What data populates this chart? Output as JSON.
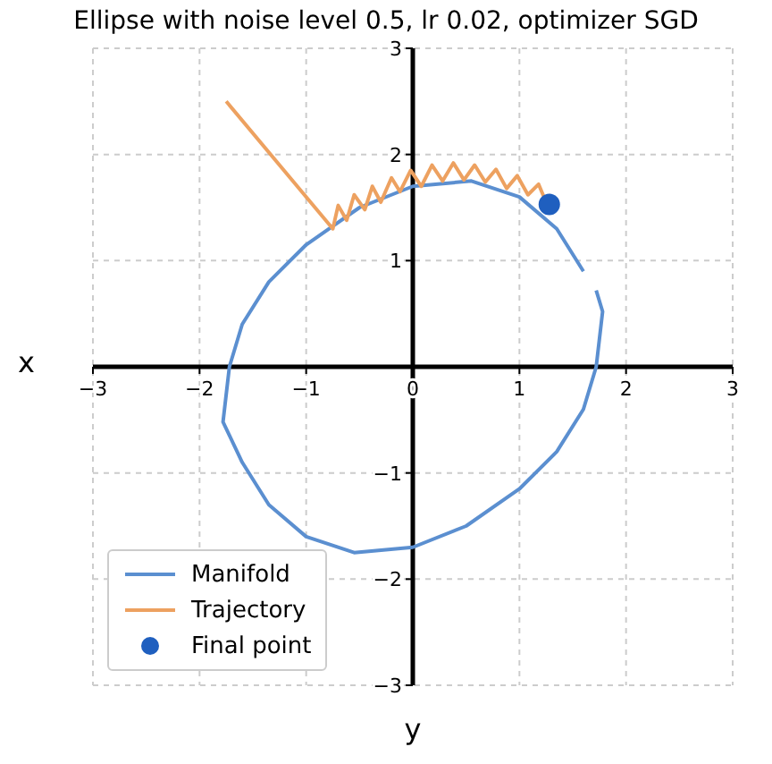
{
  "chart_data": {
    "type": "line",
    "title": "Ellipse with noise level 0.5, lr 0.02, optimizer SGD",
    "xlabel": "y",
    "ylabel": "x",
    "xlim": [
      -3,
      3
    ],
    "ylim": [
      -3,
      3
    ],
    "xticks": [
      -3,
      -2,
      -1,
      0,
      1,
      2,
      3
    ],
    "yticks": [
      -3,
      -2,
      -1,
      {
        "value": 0,
        "label": null
      },
      1,
      2,
      3
    ],
    "grid": true,
    "legend": "bottom left",
    "series": [
      {
        "name": "Manifold",
        "type": "line",
        "color": "#5b8fd0",
        "x": [
          1.72,
          1.78,
          1.72,
          1.6,
          1.35,
          1.0,
          0.5,
          0,
          -0.55,
          -1.0,
          -1.35,
          -1.6,
          -1.78,
          -1.72,
          -1.6,
          -1.35,
          -1.0,
          -0.5,
          0,
          0.55,
          1.0,
          1.35,
          1.6
        ],
        "values": [
          0.72,
          0.52,
          0,
          -0.4,
          -0.8,
          -1.15,
          -1.5,
          -1.7,
          -1.75,
          -1.6,
          -1.3,
          -0.9,
          -0.52,
          0,
          0.4,
          0.8,
          1.15,
          1.5,
          1.7,
          1.75,
          1.6,
          1.3,
          0.9
        ]
      },
      {
        "name": "Trajectory",
        "type": "line",
        "color": "#eda160",
        "x": [
          -1.75,
          -0.75,
          -0.7,
          -0.62,
          -0.55,
          -0.45,
          -0.38,
          -0.3,
          -0.2,
          -0.12,
          -0.02,
          0.08,
          0.18,
          0.28,
          0.38,
          0.48,
          0.58,
          0.68,
          0.78,
          0.88,
          0.98,
          1.08,
          1.18,
          1.25,
          1.3
        ],
        "values": [
          2.5,
          1.3,
          1.52,
          1.38,
          1.62,
          1.48,
          1.7,
          1.55,
          1.78,
          1.65,
          1.85,
          1.7,
          1.9,
          1.75,
          1.92,
          1.76,
          1.9,
          1.74,
          1.86,
          1.68,
          1.8,
          1.62,
          1.72,
          1.55,
          1.62
        ]
      },
      {
        "name": "Final point",
        "type": "scatter",
        "color": "#1f5fbf",
        "x": [
          1.28
        ],
        "values": [
          1.53
        ]
      }
    ]
  }
}
